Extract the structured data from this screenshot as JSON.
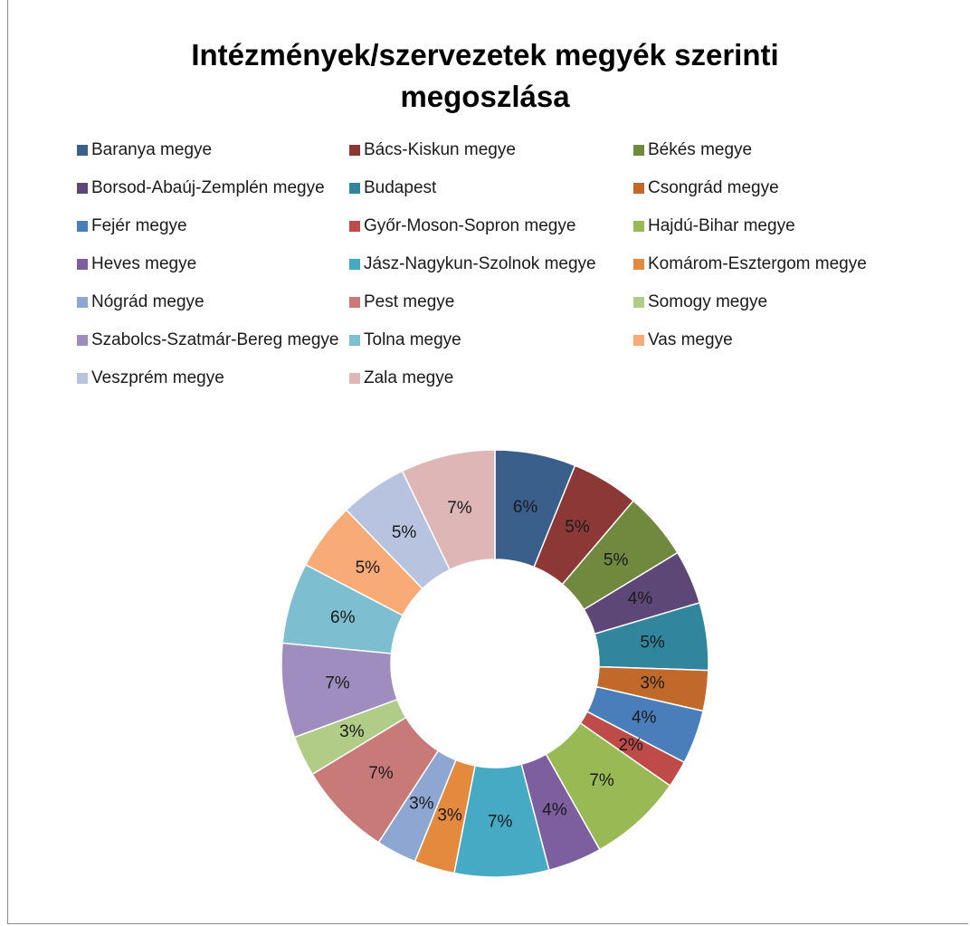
{
  "chart_data": {
    "type": "doughnut",
    "title": "Intézmények/szervezetek megyék szerinti megoszlása",
    "categories": [
      "Baranya megye",
      "Bács-Kiskun megye",
      "Békés megye",
      "Borsod-Abaúj-Zemplén megye",
      "Budapest",
      "Csongrád megye",
      "Fejér megye",
      "Győr-Moson-Sopron megye",
      "Hajdú-Bihar megye",
      "Heves megye",
      "Jász-Nagykun-Szolnok megye",
      "Komárom-Esztergom megye",
      "Nógrád megye",
      "Pest megye",
      "Somogy megye",
      "Szabolcs-Szatmár-Bereg megye",
      "Tolna megye",
      "Vas megye",
      "Veszprém megye",
      "Zala megye"
    ],
    "values": [
      6,
      5,
      5,
      4,
      5,
      3,
      4,
      2,
      7,
      4,
      7,
      3,
      3,
      7,
      3,
      7,
      6,
      5,
      5,
      7
    ],
    "value_labels": [
      "6%",
      "5%",
      "5%",
      "4%",
      "5%",
      "3%",
      "4%",
      "2%",
      "7%",
      "4%",
      "7%",
      "3%",
      "3%",
      "7%",
      "3%",
      "7%",
      "6%",
      "5%",
      "5%",
      "7%"
    ],
    "colors": [
      "#3a5f8b",
      "#8c3836",
      "#71893f",
      "#5c4776",
      "#31859c",
      "#c0692b",
      "#4a7ebb",
      "#be4b48",
      "#98b954",
      "#7d5fa0",
      "#46aac5",
      "#e48a3e",
      "#8ea7d2",
      "#c87a79",
      "#b1cc87",
      "#9f8dbf",
      "#7dbfd1",
      "#f9ab77",
      "#b8c4df",
      "#deb6b6"
    ],
    "legend": "top"
  }
}
